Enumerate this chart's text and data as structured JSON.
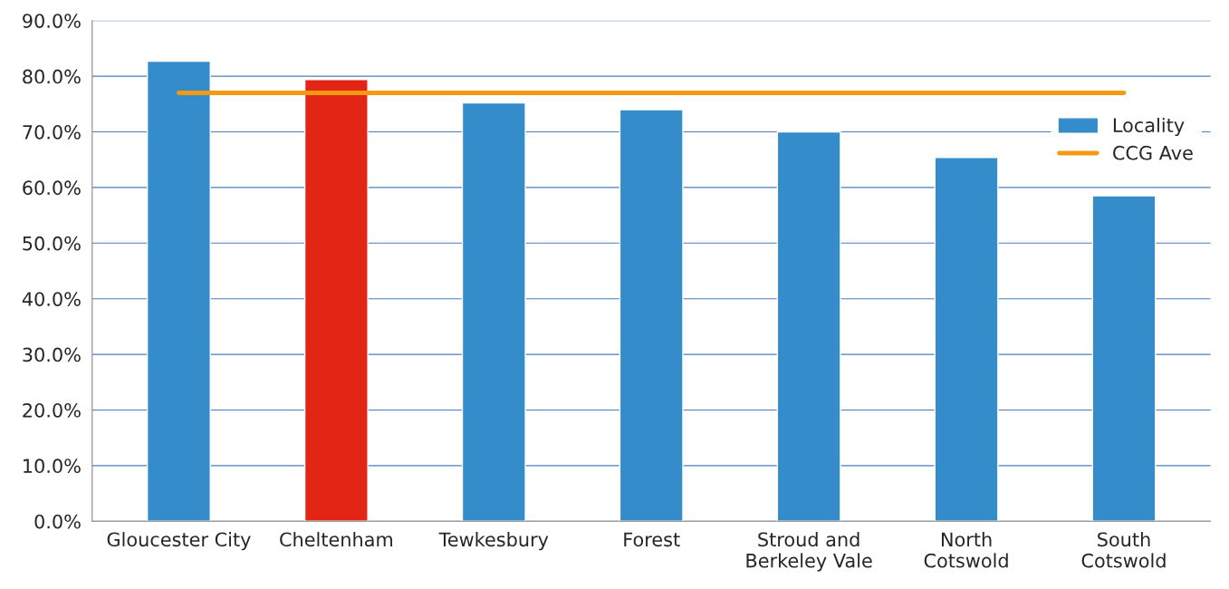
{
  "chart_data": {
    "type": "bar",
    "categories": [
      "Gloucester City",
      "Cheltenham",
      "Tewkesbury",
      "Forest",
      "Stroud and\nBerkeley Vale",
      "North\nCotswold",
      "South\nCotswold"
    ],
    "series": [
      {
        "name": "Locality",
        "color": "#358ccb",
        "colors": [
          "#358ccb",
          "#e32515",
          "#358ccb",
          "#358ccb",
          "#358ccb",
          "#358ccb",
          "#358ccb"
        ],
        "values": [
          82.7,
          79.4,
          75.2,
          74.0,
          70.0,
          65.4,
          58.5
        ]
      },
      {
        "name": "CCG Ave",
        "type": "line",
        "color": "#f39a12",
        "values": [
          77.0,
          77.0,
          77.0,
          77.0,
          77.0,
          77.0,
          77.0
        ]
      }
    ],
    "ylim": [
      0,
      90
    ],
    "yticks": [
      {
        "value": 0,
        "label": "0.0%"
      },
      {
        "value": 10,
        "label": "10.0%"
      },
      {
        "value": 20,
        "label": "20.0%"
      },
      {
        "value": 30,
        "label": "30.0%"
      },
      {
        "value": 40,
        "label": "40.0%"
      },
      {
        "value": 50,
        "label": "50.0%"
      },
      {
        "value": 60,
        "label": "60.0%"
      },
      {
        "value": 70,
        "label": "70.0%"
      },
      {
        "value": 80,
        "label": "80.0%"
      },
      {
        "value": 90,
        "label": "90.0%"
      }
    ],
    "grid": "y",
    "legend": "top right",
    "marker": "none",
    "line_style": "solid"
  }
}
